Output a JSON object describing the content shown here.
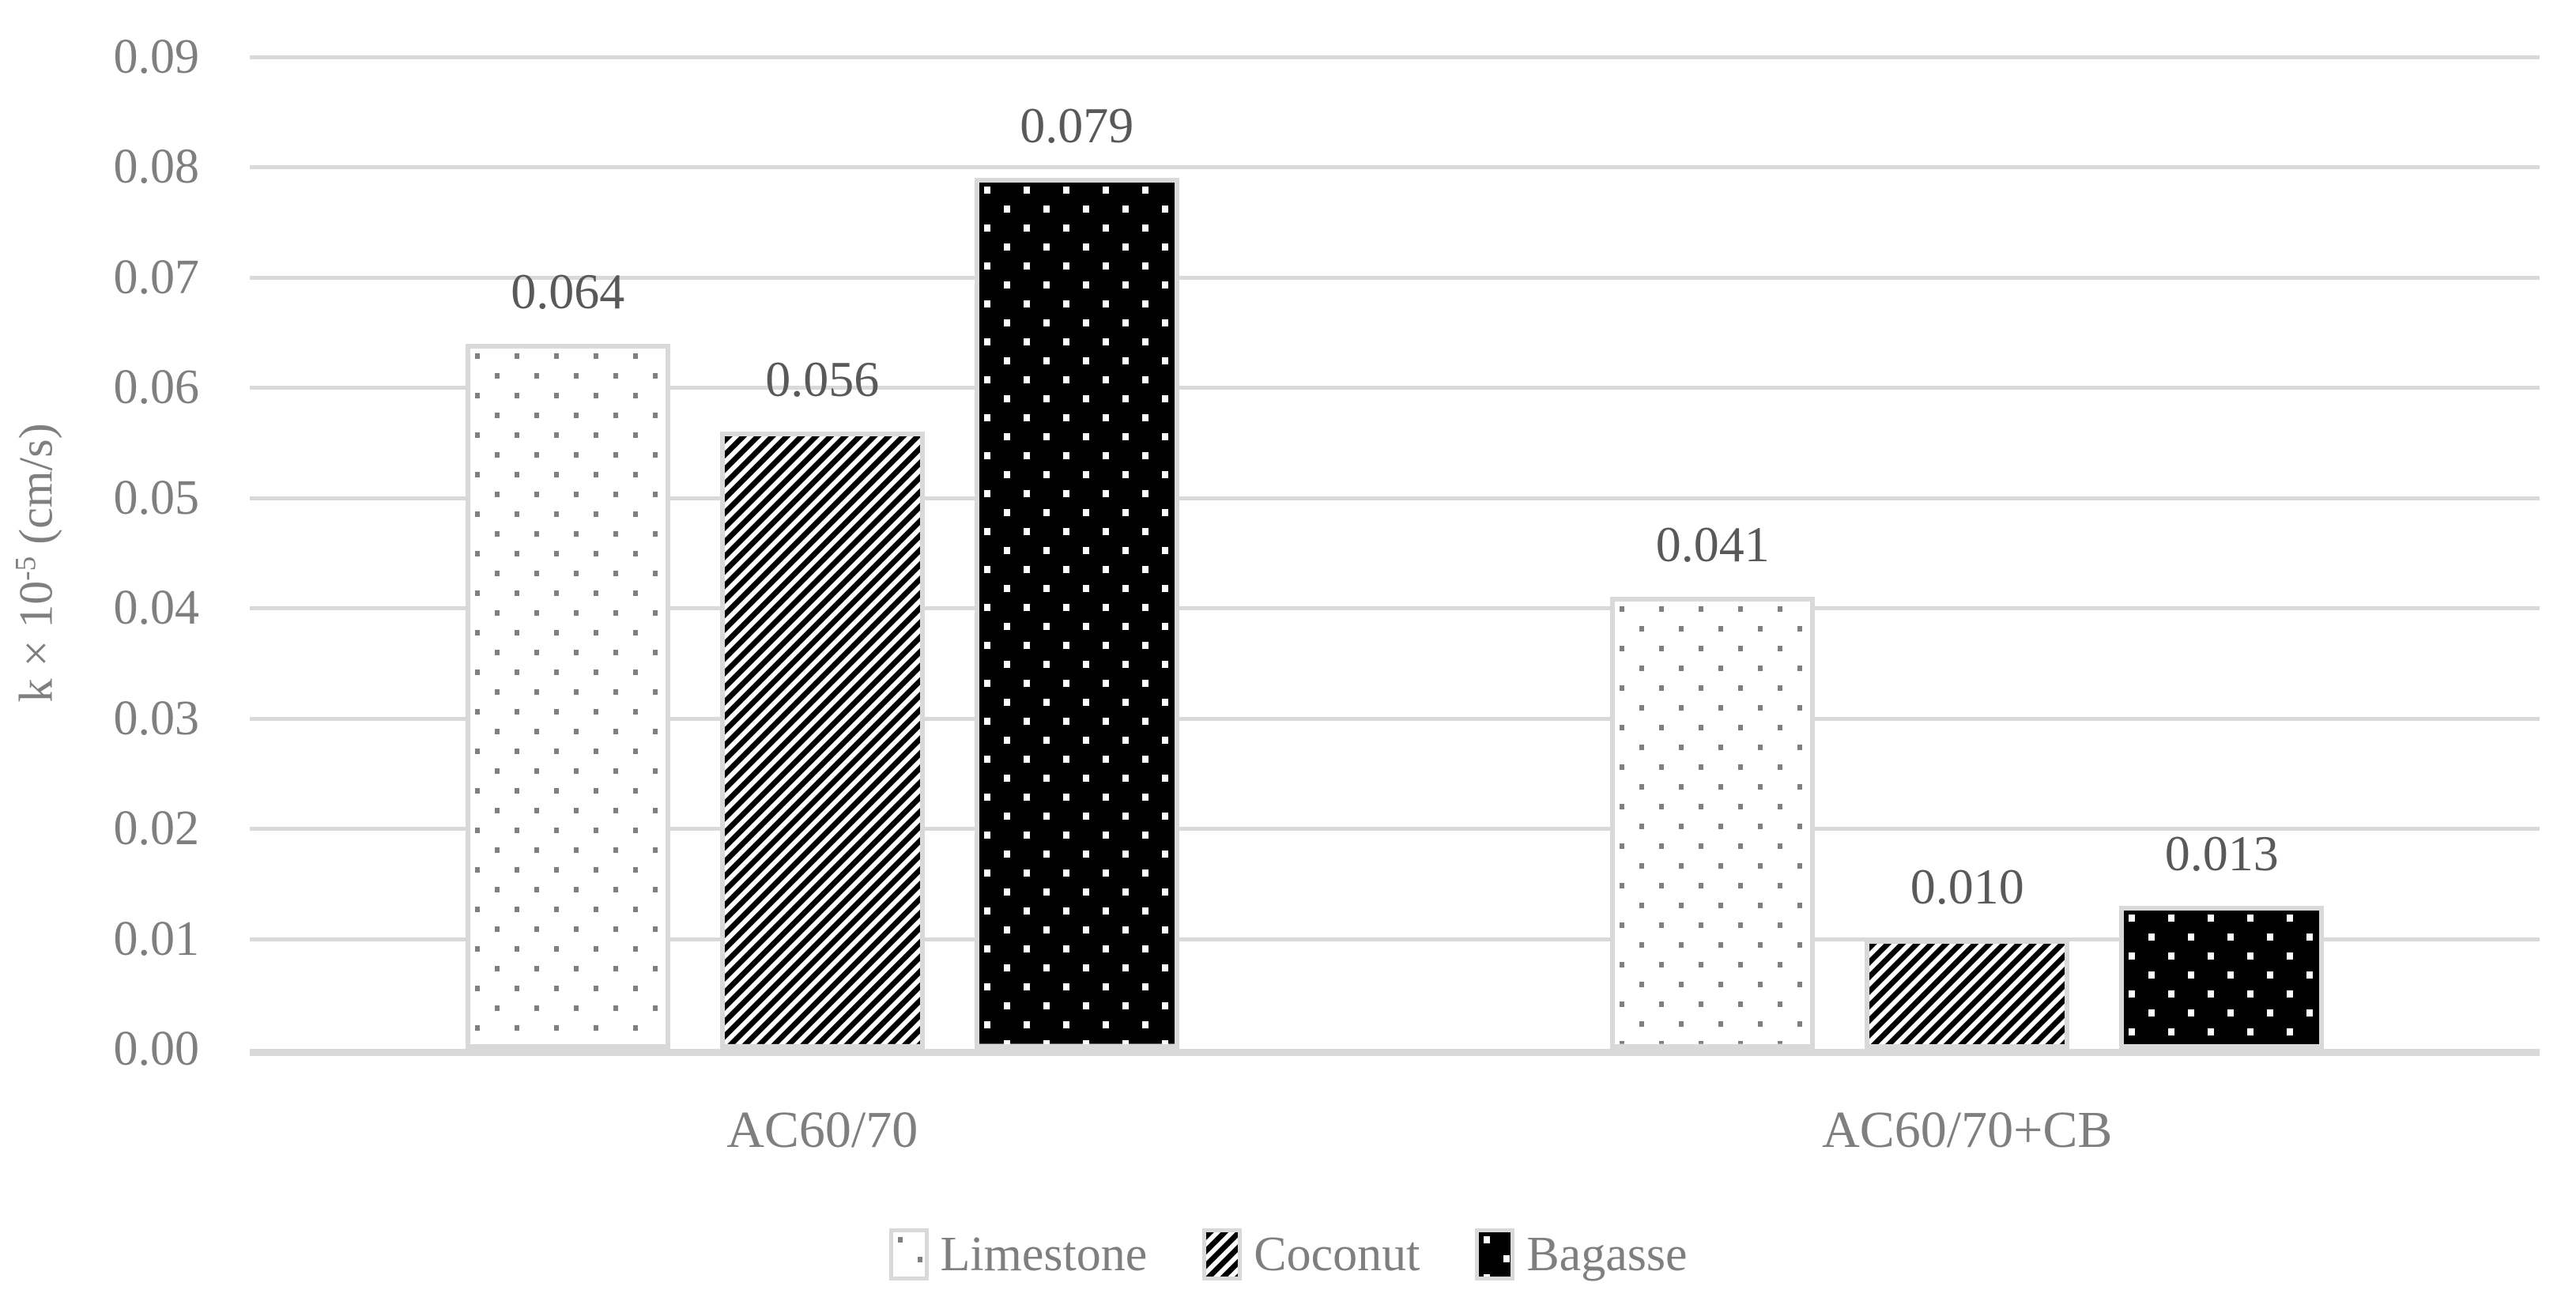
{
  "chart_data": {
    "type": "bar",
    "title": "",
    "ylabel_parts": {
      "prefix": "k × 10",
      "superscript": "-5",
      "suffix": " (cm/s)"
    },
    "ylabel_text": "k × 10^-5 (cm/s)",
    "categories": [
      "AC60/70",
      "AC60/70+CB"
    ],
    "series": [
      {
        "name": "Limestone",
        "pattern": "gray-square-dots-on-white",
        "values": [
          0.064,
          0.041
        ],
        "labels": [
          "0.064",
          "0.041"
        ]
      },
      {
        "name": "Coconut",
        "pattern": "black-diagonal-stripes",
        "values": [
          0.056,
          0.01
        ],
        "labels": [
          "0.056",
          "0.010"
        ]
      },
      {
        "name": "Bagasse",
        "pattern": "white-square-dots-on-black",
        "values": [
          0.079,
          0.013
        ],
        "labels": [
          "0.079",
          "0.013"
        ]
      }
    ],
    "ylim": [
      0,
      0.09
    ],
    "yticks": [
      0.0,
      0.01,
      0.02,
      0.03,
      0.04,
      0.05,
      0.06,
      0.07,
      0.08,
      0.09
    ],
    "ytick_labels": [
      "0.00",
      "0.01",
      "0.02",
      "0.03",
      "0.04",
      "0.05",
      "0.06",
      "0.07",
      "0.08",
      "0.09"
    ],
    "grid": "horizontal",
    "legend_position": "bottom",
    "legend_entries": [
      "Limestone",
      "Coconut",
      "Bagasse"
    ],
    "colors": {
      "background": "#ffffff",
      "gridline": "#d9d9d9",
      "axis_line": "#d9d9d9",
      "bar_border": "#d9d9d9",
      "tick_text": "#7f7f7f",
      "category_text": "#7f7f7f",
      "legend_text": "#7f7f7f",
      "value_label_text": "#595959",
      "pattern_black": "#000000",
      "pattern_dot_gray": "#7f7f7f",
      "pattern_white": "#ffffff"
    }
  }
}
